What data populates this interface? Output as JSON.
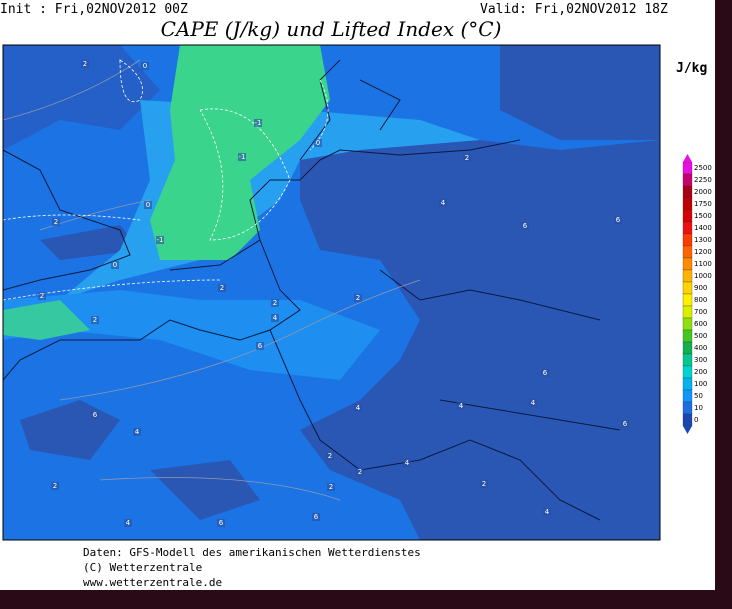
{
  "header": {
    "init": "Init : Fri,02NOV2012 00Z",
    "valid": "Valid: Fri,02NOV2012 18Z",
    "title": "CAPE (J/kg) und Lifted Index (°C)"
  },
  "legend": {
    "unit": "J/kg",
    "levels": [
      2500,
      2250,
      2000,
      1750,
      1500,
      1400,
      1300,
      1200,
      1100,
      1000,
      900,
      800,
      700,
      600,
      500,
      400,
      300,
      200,
      100,
      50,
      10,
      0
    ],
    "colors": [
      "#e810e0",
      "#c80070",
      "#a80010",
      "#c00000",
      "#d80000",
      "#ee1010",
      "#ff3c00",
      "#ff6400",
      "#ff8c00",
      "#ffb400",
      "#ffd200",
      "#fff000",
      "#d8f000",
      "#90e010",
      "#40c820",
      "#10b050",
      "#00c890",
      "#00d4d0",
      "#00b4f0",
      "#1094ff",
      "#1a6ee0",
      "#1a48b0"
    ]
  },
  "contour_labels": [
    "0",
    "2",
    "-1",
    "-1",
    "-1",
    "0",
    "0",
    "2",
    "0",
    "2",
    "2",
    "2",
    "2",
    "4",
    "6",
    "2",
    "4",
    "6",
    "6",
    "2",
    "6",
    "4",
    "4",
    "6",
    "6",
    "4",
    "4",
    "2",
    "2",
    "4",
    "2",
    "2",
    "2",
    "4",
    "6",
    "6",
    "4"
  ],
  "footer": {
    "source": "Daten: GFS-Modell des amerikanischen Wetterdienstes",
    "copyright": "(C) Wetterzentrale",
    "url": "www.wetterzentrale.de"
  }
}
